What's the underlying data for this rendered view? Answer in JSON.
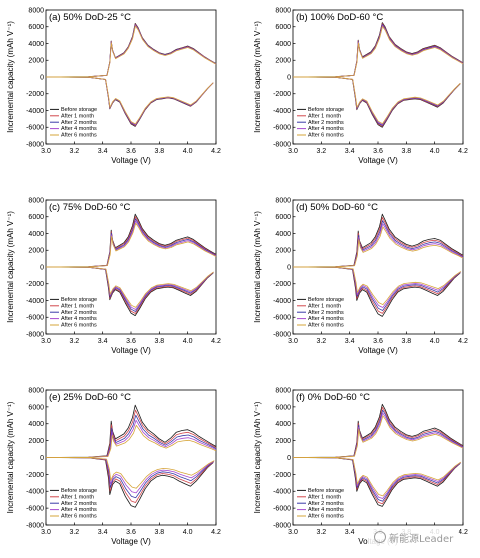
{
  "watermark": {
    "text": "新能源Leader"
  },
  "colors": {
    "Before storage": "#1a1a1a",
    "After 1 month": "#d1464b",
    "After 2 months": "#3a3aa8",
    "After 4 months": "#a64ad0",
    "After 6 months": "#d6a53a"
  },
  "chart_data": [
    {
      "type": "line",
      "title": "(a) 50% DoD-25 °C",
      "xlabel": "Voltage (V)",
      "ylabel": "Incremental capacity (mAh V⁻¹)",
      "xlim": [
        3.0,
        4.2
      ],
      "ylim": [
        -8000,
        8000
      ],
      "xticks": [
        "3.0",
        "3.2",
        "3.4",
        "3.6",
        "3.8",
        "4.0",
        "4.2"
      ],
      "yticks": [
        "-8000",
        "-6000",
        "-4000",
        "-2000",
        "0",
        "2000",
        "4000",
        "6000",
        "8000"
      ],
      "legend": {
        "position": "bottom-left",
        "entries": [
          "Before storage",
          "After 1 month",
          "After 2 months",
          "After 4 months",
          "After 6 months"
        ]
      },
      "series_variation": 0.02,
      "charge": {
        "x": [
          3.0,
          3.3,
          3.43,
          3.45,
          3.46,
          3.47,
          3.49,
          3.52,
          3.55,
          3.58,
          3.61,
          3.63,
          3.65,
          3.68,
          3.72,
          3.76,
          3.8,
          3.84,
          3.88,
          3.92,
          3.96,
          4.0,
          4.04,
          4.08,
          4.12,
          4.16,
          4.2
        ],
        "y": [
          0,
          30,
          200,
          1800,
          4300,
          3200,
          2300,
          2600,
          2900,
          3600,
          4800,
          6400,
          5900,
          4700,
          3800,
          3300,
          2900,
          2700,
          2900,
          3300,
          3500,
          3700,
          3400,
          2900,
          2400,
          2000,
          1600
        ]
      },
      "discharge": {
        "x": [
          3.0,
          3.3,
          3.42,
          3.44,
          3.45,
          3.47,
          3.49,
          3.52,
          3.56,
          3.6,
          3.63,
          3.66,
          3.7,
          3.74,
          3.78,
          3.82,
          3.86,
          3.9,
          3.94,
          3.98,
          4.02,
          4.06,
          4.1,
          4.14,
          4.18
        ],
        "y": [
          0,
          -30,
          -300,
          -2400,
          -3800,
          -3100,
          -2700,
          -3000,
          -4400,
          -5600,
          -5900,
          -5100,
          -3900,
          -3100,
          -2700,
          -2600,
          -2500,
          -2600,
          -2900,
          -3200,
          -3500,
          -3000,
          -2200,
          -1400,
          -700
        ]
      }
    },
    {
      "type": "line",
      "title": "(b) 100% DoD-60 °C",
      "xlabel": "Voltage (V)",
      "ylabel": "Incremental capacity (mAh V⁻¹)",
      "xlim": [
        3.0,
        4.2
      ],
      "ylim": [
        -8000,
        8000
      ],
      "xticks": [
        "3.0",
        "3.2",
        "3.4",
        "3.6",
        "3.8",
        "4.0",
        "4.2"
      ],
      "yticks": [
        "-8000",
        "-6000",
        "-4000",
        "-2000",
        "0",
        "2000",
        "4000",
        "6000",
        "8000"
      ],
      "legend": {
        "position": "bottom-left",
        "entries": [
          "Before storage",
          "After 1 month",
          "After 2 months",
          "After 4 months",
          "After 6 months"
        ]
      },
      "series_variation": 0.03,
      "charge": {
        "x": [
          3.0,
          3.3,
          3.43,
          3.45,
          3.46,
          3.47,
          3.49,
          3.52,
          3.55,
          3.58,
          3.61,
          3.63,
          3.65,
          3.68,
          3.72,
          3.76,
          3.8,
          3.84,
          3.88,
          3.92,
          3.96,
          4.0,
          4.04,
          4.08,
          4.12,
          4.16,
          4.2
        ],
        "y": [
          0,
          30,
          200,
          1900,
          4400,
          3300,
          2400,
          2700,
          3000,
          3700,
          5000,
          6500,
          6000,
          4800,
          3900,
          3400,
          3000,
          2800,
          3000,
          3400,
          3600,
          3800,
          3500,
          3000,
          2500,
          2100,
          1700
        ]
      },
      "discharge": {
        "x": [
          3.0,
          3.3,
          3.42,
          3.44,
          3.45,
          3.47,
          3.49,
          3.52,
          3.56,
          3.6,
          3.63,
          3.66,
          3.7,
          3.74,
          3.78,
          3.82,
          3.86,
          3.9,
          3.94,
          3.98,
          4.02,
          4.06,
          4.1,
          4.14,
          4.18
        ],
        "y": [
          0,
          -30,
          -300,
          -2500,
          -3900,
          -3200,
          -2800,
          -3100,
          -4500,
          -5700,
          -6000,
          -5200,
          -4000,
          -3200,
          -2800,
          -2700,
          -2600,
          -2700,
          -3000,
          -3300,
          -3600,
          -3100,
          -2300,
          -1500,
          -800
        ]
      }
    },
    {
      "type": "line",
      "title": "(c) 75% DoD-60 °C",
      "xlabel": "Voltage (V)",
      "ylabel": "Incremental capacity (mAh V⁻¹)",
      "xlim": [
        3.0,
        4.2
      ],
      "ylim": [
        -8000,
        8000
      ],
      "xticks": [
        "3.0",
        "3.2",
        "3.4",
        "3.6",
        "3.8",
        "4.0",
        "4.2"
      ],
      "yticks": [
        "-8000",
        "-6000",
        "-4000",
        "-2000",
        "0",
        "2000",
        "4000",
        "6000",
        "8000"
      ],
      "legend": {
        "position": "bottom-left",
        "entries": [
          "Before storage",
          "After 1 month",
          "After 2 months",
          "After 4 months",
          "After 6 months"
        ]
      },
      "series_variation": 0.07,
      "charge": {
        "x": [
          3.0,
          3.3,
          3.43,
          3.45,
          3.46,
          3.47,
          3.49,
          3.52,
          3.55,
          3.58,
          3.61,
          3.63,
          3.65,
          3.68,
          3.72,
          3.76,
          3.8,
          3.84,
          3.88,
          3.92,
          3.96,
          4.0,
          4.04,
          4.08,
          4.12,
          4.16,
          4.2
        ],
        "y": [
          0,
          30,
          200,
          1800,
          4400,
          3200,
          2300,
          2600,
          2900,
          3600,
          4900,
          6300,
          5700,
          4600,
          3700,
          3200,
          2800,
          2600,
          2800,
          3200,
          3400,
          3600,
          3300,
          2800,
          2300,
          1900,
          1500
        ]
      },
      "discharge": {
        "x": [
          3.0,
          3.3,
          3.42,
          3.44,
          3.45,
          3.47,
          3.49,
          3.52,
          3.56,
          3.6,
          3.63,
          3.66,
          3.7,
          3.74,
          3.78,
          3.82,
          3.86,
          3.9,
          3.94,
          3.98,
          4.02,
          4.06,
          4.1,
          4.14,
          4.18
        ],
        "y": [
          0,
          -30,
          -300,
          -2400,
          -3900,
          -3100,
          -2700,
          -3000,
          -4300,
          -5500,
          -5800,
          -5000,
          -3800,
          -3000,
          -2600,
          -2500,
          -2400,
          -2500,
          -2800,
          -3100,
          -3400,
          -2900,
          -2100,
          -1300,
          -700
        ]
      }
    },
    {
      "type": "line",
      "title": "(d) 50% DoD-60 °C",
      "xlabel": "Voltage (V)",
      "ylabel": "Incremental capacity (mAh V⁻¹)",
      "xlim": [
        3.0,
        4.2
      ],
      "ylim": [
        -8000,
        8000
      ],
      "xticks": [
        "3.0",
        "3.2",
        "3.4",
        "3.6",
        "3.8",
        "4.0",
        "4.2"
      ],
      "yticks": [
        "-8000",
        "-6000",
        "-4000",
        "-2000",
        "0",
        "2000",
        "4000",
        "6000",
        "8000"
      ],
      "legend": {
        "position": "bottom-left",
        "entries": [
          "Before storage",
          "After 1 month",
          "After 2 months",
          "After 4 months",
          "After 6 months"
        ]
      },
      "series_variation": 0.1,
      "charge": {
        "x": [
          3.0,
          3.3,
          3.43,
          3.45,
          3.46,
          3.47,
          3.49,
          3.52,
          3.55,
          3.58,
          3.61,
          3.63,
          3.65,
          3.68,
          3.72,
          3.76,
          3.8,
          3.84,
          3.88,
          3.92,
          3.96,
          4.0,
          4.04,
          4.08,
          4.12,
          4.16,
          4.2
        ],
        "y": [
          0,
          30,
          200,
          1800,
          4300,
          3100,
          2300,
          2600,
          2900,
          3600,
          4800,
          6300,
          5600,
          4500,
          3600,
          3100,
          2700,
          2500,
          2700,
          3100,
          3300,
          3400,
          3200,
          2700,
          2200,
          1800,
          1400
        ]
      },
      "discharge": {
        "x": [
          3.0,
          3.3,
          3.42,
          3.44,
          3.45,
          3.47,
          3.49,
          3.52,
          3.56,
          3.6,
          3.63,
          3.66,
          3.7,
          3.74,
          3.78,
          3.82,
          3.86,
          3.9,
          3.94,
          3.98,
          4.02,
          4.06,
          4.1,
          4.14,
          4.18
        ],
        "y": [
          0,
          -30,
          -300,
          -2400,
          -4000,
          -3100,
          -2700,
          -3000,
          -4400,
          -5600,
          -5900,
          -5100,
          -3900,
          -3000,
          -2600,
          -2500,
          -2400,
          -2500,
          -2800,
          -3100,
          -3400,
          -2900,
          -2100,
          -1300,
          -700
        ]
      }
    },
    {
      "type": "line",
      "title": "(e) 25% DoD-60 °C",
      "xlabel": "Voltage (V)",
      "ylabel": "Incremental capacity (mAh V⁻¹)",
      "xlim": [
        3.0,
        4.2
      ],
      "ylim": [
        -8000,
        8000
      ],
      "xticks": [
        "3.0",
        "3.2",
        "3.4",
        "3.6",
        "3.8",
        "4.0",
        "4.2"
      ],
      "yticks": [
        "-8000",
        "-6000",
        "-4000",
        "-2000",
        "0",
        "2000",
        "4000",
        "6000",
        "8000"
      ],
      "legend": {
        "position": "bottom-left",
        "entries": [
          "Before storage",
          "After 1 month",
          "After 2 months",
          "After 4 months",
          "After 6 months"
        ]
      },
      "series_variation": 0.16,
      "charge": {
        "x": [
          3.0,
          3.3,
          3.43,
          3.45,
          3.46,
          3.47,
          3.49,
          3.52,
          3.55,
          3.58,
          3.61,
          3.63,
          3.65,
          3.68,
          3.72,
          3.76,
          3.8,
          3.84,
          3.88,
          3.92,
          3.96,
          4.0,
          4.04,
          4.08,
          4.12,
          4.16,
          4.2
        ],
        "y": [
          0,
          30,
          200,
          1700,
          4300,
          3100,
          2200,
          2500,
          2800,
          3500,
          4700,
          6200,
          5400,
          4200,
          3300,
          2800,
          2200,
          1800,
          2300,
          3000,
          3200,
          3300,
          3000,
          2500,
          2100,
          1700,
          1300
        ]
      },
      "discharge": {
        "x": [
          3.0,
          3.3,
          3.42,
          3.44,
          3.45,
          3.47,
          3.49,
          3.52,
          3.56,
          3.6,
          3.63,
          3.66,
          3.7,
          3.74,
          3.78,
          3.82,
          3.86,
          3.9,
          3.94,
          3.98,
          4.02,
          4.06,
          4.1,
          4.14,
          4.18
        ],
        "y": [
          0,
          -30,
          -300,
          -2300,
          -4400,
          -3200,
          -2800,
          -3100,
          -4600,
          -5700,
          -5900,
          -5000,
          -3700,
          -2800,
          -2300,
          -2100,
          -2200,
          -2400,
          -2800,
          -3100,
          -3400,
          -2800,
          -2000,
          -1200,
          -600
        ]
      }
    },
    {
      "type": "line",
      "title": "(f) 0% DoD-60 °C",
      "xlabel": "Voltage (V)",
      "ylabel": "Incremental capacity (mAh V⁻¹)",
      "xlim": [
        3.0,
        4.2
      ],
      "ylim": [
        -8000,
        8000
      ],
      "xticks": [
        "3.0",
        "3.2",
        "3.4",
        "3.6",
        "3.8",
        "4.0",
        "4.2"
      ],
      "yticks": [
        "-8000",
        "-6000",
        "-4000",
        "-2000",
        "0",
        "2000",
        "4000",
        "6000",
        "8000"
      ],
      "legend": {
        "position": "bottom-left",
        "entries": [
          "Before storage",
          "After 1 month",
          "After 2 months",
          "After 4 months",
          "After 6 months"
        ]
      },
      "series_variation": 0.09,
      "charge": {
        "x": [
          3.0,
          3.3,
          3.43,
          3.45,
          3.46,
          3.47,
          3.49,
          3.52,
          3.55,
          3.58,
          3.61,
          3.63,
          3.65,
          3.68,
          3.72,
          3.76,
          3.8,
          3.84,
          3.88,
          3.92,
          3.96,
          4.0,
          4.04,
          4.08,
          4.12,
          4.16,
          4.2
        ],
        "y": [
          0,
          30,
          200,
          1800,
          4300,
          3200,
          2300,
          2600,
          2900,
          3600,
          4800,
          6300,
          5700,
          4500,
          3600,
          3100,
          2700,
          2500,
          2700,
          3100,
          3300,
          3500,
          3200,
          2700,
          2200,
          1800,
          1400
        ]
      },
      "discharge": {
        "x": [
          3.0,
          3.3,
          3.42,
          3.44,
          3.45,
          3.47,
          3.49,
          3.52,
          3.56,
          3.6,
          3.63,
          3.66,
          3.7,
          3.74,
          3.78,
          3.82,
          3.86,
          3.9,
          3.94,
          3.98,
          4.02,
          4.06,
          4.1,
          4.14,
          4.18
        ],
        "y": [
          0,
          -30,
          -300,
          -2400,
          -4000,
          -3100,
          -2700,
          -3000,
          -4400,
          -5600,
          -5800,
          -5000,
          -3800,
          -3000,
          -2600,
          -2500,
          -2400,
          -2500,
          -2800,
          -3100,
          -3400,
          -2900,
          -2100,
          -1300,
          -700
        ]
      }
    }
  ]
}
